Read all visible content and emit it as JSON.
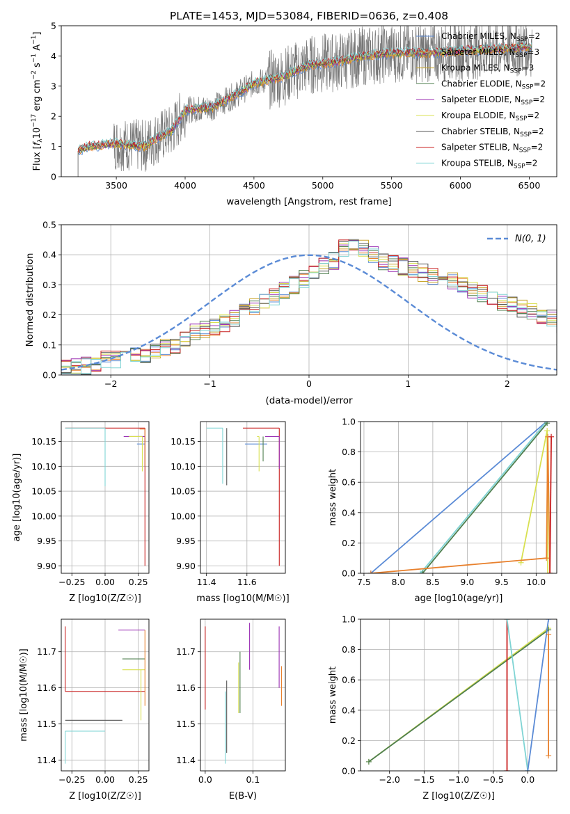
{
  "figure_title": "PLATE=1453, MJD=53084, FIBERID=0636, z=0.408",
  "colors": {
    "chabrier_miles": "#5b8bd6",
    "salpeter_miles": "#e8812e",
    "kroupa_miles": "#c8a42a",
    "chabrier_elodie": "#4f7f4f",
    "salpeter_elodie": "#9b30b4",
    "kroupa_elodie": "#d8e050",
    "chabrier_stelib": "#555555",
    "salpeter_stelib": "#c81e1e",
    "kroupa_stelib": "#7fd4d4",
    "data": "#777777",
    "normal": "#5b8bd6"
  },
  "chart_data": [
    {
      "id": "spectrum",
      "type": "line",
      "title": "PLATE=1453, MJD=53084, FIBERID=0636, z=0.408",
      "xlabel": "wavelength [Angstrom, rest frame]",
      "ylabel": "Flux [f_λ 10^-17 erg cm^-2 s^-1 A^-1]",
      "xlim": [
        3100,
        6700
      ],
      "ylim": [
        0,
        5
      ],
      "xticks": [
        "3500",
        "4000",
        "4500",
        "5000",
        "5500",
        "6000",
        "6500"
      ],
      "yticks": [
        "0",
        "1",
        "2",
        "3",
        "4",
        "5"
      ],
      "legend_position": "right",
      "legend": [
        {
          "key": "chabrier_miles",
          "label": "Chabrier MILES, N",
          "sub": "SSP",
          "suffix": "=2"
        },
        {
          "key": "salpeter_miles",
          "label": "Salpeter MILES, N",
          "sub": "SSP",
          "suffix": "=3"
        },
        {
          "key": "kroupa_miles",
          "label": "Kroupa MILES, N",
          "sub": "SSP",
          "suffix": "=3"
        },
        {
          "key": "chabrier_elodie",
          "label": "Chabrier ELODIE, N",
          "sub": "SSP",
          "suffix": "=2"
        },
        {
          "key": "salpeter_elodie",
          "label": "Salpeter ELODIE, N",
          "sub": "SSP",
          "suffix": "=2"
        },
        {
          "key": "kroupa_elodie",
          "label": "Kroupa ELODIE, N",
          "sub": "SSP",
          "suffix": "=2"
        },
        {
          "key": "chabrier_stelib",
          "label": "Chabrier STELIB, N",
          "sub": "SSP",
          "suffix": "=2"
        },
        {
          "key": "salpeter_stelib",
          "label": "Salpeter STELIB, N",
          "sub": "SSP",
          "suffix": "=2"
        },
        {
          "key": "kroupa_stelib",
          "label": "Kroupa STELIB, N",
          "sub": "SSP",
          "suffix": "=2"
        }
      ],
      "continuum": [
        [
          3220,
          0.85
        ],
        [
          3300,
          1.0
        ],
        [
          3500,
          1.1
        ],
        [
          3700,
          1.0
        ],
        [
          3800,
          1.3
        ],
        [
          3900,
          1.5
        ],
        [
          4000,
          2.2
        ],
        [
          4200,
          2.3
        ],
        [
          4400,
          2.8
        ],
        [
          4500,
          3.1
        ],
        [
          4700,
          3.3
        ],
        [
          4900,
          3.7
        ],
        [
          5100,
          3.8
        ],
        [
          5300,
          4.0
        ],
        [
          5500,
          4.1
        ],
        [
          5800,
          4.1
        ],
        [
          6100,
          4.2
        ],
        [
          6300,
          4.25
        ],
        [
          6500,
          4.3
        ]
      ]
    },
    {
      "id": "residuals",
      "type": "line",
      "xlabel": "(data-model)/error",
      "ylabel": "Normed distribution",
      "xlim": [
        -2.5,
        2.5
      ],
      "ylim": [
        0,
        0.5
      ],
      "xticks": [
        "−2",
        "−1",
        "0",
        "1",
        "2"
      ],
      "yticks": [
        "0.0",
        "0.1",
        "0.2",
        "0.3",
        "0.4",
        "0.5"
      ],
      "legend_position": "top-right",
      "series_label": "N(0, 1)",
      "histogram_bin_width": 0.1,
      "histogram_base": [
        0.02,
        0.025,
        0.03,
        0.04,
        0.05,
        0.05,
        0.06,
        0.065,
        0.07,
        0.08,
        0.09,
        0.1,
        0.12,
        0.14,
        0.15,
        0.16,
        0.17,
        0.19,
        0.21,
        0.23,
        0.25,
        0.26,
        0.28,
        0.3,
        0.32,
        0.34,
        0.36,
        0.38,
        0.4,
        0.41,
        0.42,
        0.4,
        0.38,
        0.37,
        0.36,
        0.35,
        0.34,
        0.33,
        0.32,
        0.31,
        0.3,
        0.28,
        0.27,
        0.26,
        0.24,
        0.23,
        0.22,
        0.21,
        0.2,
        0.19,
        0.17,
        0.16,
        0.15,
        0.14,
        0.13,
        0.12,
        0.11,
        0.1,
        0.095,
        0.09,
        0.08,
        0.075,
        0.07,
        0.065,
        0.06,
        0.055,
        0.05,
        0.048,
        0.045,
        0.042,
        0.04
      ]
    },
    {
      "id": "age_vs_z",
      "type": "scatter",
      "xlabel": "Z [log10(Z/Z☉)]",
      "ylabel": "age [log10(age/yr)]",
      "xlim": [
        -0.33,
        0.33
      ],
      "ylim": [
        9.885,
        10.19
      ],
      "xticks": [
        "−0.25",
        "0.00",
        "0.25"
      ],
      "yticks": [
        "9.90",
        "9.95",
        "10.00",
        "10.05",
        "10.10",
        "10.15"
      ],
      "segments": [
        {
          "key": "salpeter_stelib",
          "x0": -0.3,
          "x1": 0.3,
          "y0": 10.177,
          "y1": 9.9
        },
        {
          "key": "kroupa_stelib",
          "x0": -0.3,
          "x1": 0.0,
          "y0": 10.177,
          "y1": 10.06
        },
        {
          "key": "chabrier_miles",
          "x0": 0.24,
          "x1": 0.3,
          "y0": 10.145,
          "y1": 10.145
        },
        {
          "key": "salpeter_elodie",
          "x0": 0.14,
          "x1": 0.3,
          "y0": 10.16,
          "y1": 10.1
        },
        {
          "key": "kroupa_elodie",
          "x0": 0.18,
          "x1": 0.28,
          "y0": 10.16,
          "y1": 10.09
        },
        {
          "key": "salpeter_miles",
          "x0": 0.26,
          "x1": 0.3,
          "y0": 10.175,
          "y1": 10.1
        }
      ]
    },
    {
      "id": "age_vs_mass",
      "type": "scatter",
      "xlabel": "mass [log10(M/M☉)]",
      "ylabel": "",
      "xlim": [
        11.37,
        11.79
      ],
      "ylim": [
        9.885,
        10.19
      ],
      "xticks": [
        "11.4",
        "11.6"
      ],
      "yticks": [
        "9.90",
        "9.95",
        "10.00",
        "10.05",
        "10.10",
        "10.15"
      ],
      "segments": [
        {
          "key": "kroupa_stelib",
          "x0": 11.4,
          "x1": 11.48,
          "y0": 10.177,
          "y1": 10.065
        },
        {
          "key": "chabrier_stelib",
          "x0": 11.5,
          "x1": 11.5,
          "y0": 10.177,
          "y1": 10.062
        },
        {
          "key": "salpeter_stelib",
          "x0": 11.58,
          "x1": 11.76,
          "y0": 10.177,
          "y1": 9.9
        },
        {
          "key": "chabrier_miles",
          "x0": 11.59,
          "x1": 11.7,
          "y0": 10.145,
          "y1": 10.145
        },
        {
          "key": "kroupa_elodie",
          "x0": 11.65,
          "x1": 11.66,
          "y0": 10.16,
          "y1": 10.09
        },
        {
          "key": "salpeter_elodie",
          "x0": 11.69,
          "x1": 11.76,
          "y0": 10.16,
          "y1": 10.095
        },
        {
          "key": "chabrier_elodie",
          "x0": 11.68,
          "x1": 11.68,
          "y0": 10.16,
          "y1": 10.11
        }
      ]
    },
    {
      "id": "weight_vs_age",
      "type": "line",
      "xlabel": "age [log10(age/yr)]",
      "ylabel": "mass weight",
      "xlim": [
        7.45,
        10.3
      ],
      "ylim": [
        0,
        1
      ],
      "xticks": [
        "7.5",
        "8.0",
        "8.5",
        "9.0",
        "9.5",
        "10.0"
      ],
      "yticks": [
        "0.0",
        "0.2",
        "0.4",
        "0.6",
        "0.8",
        "1.0"
      ],
      "series": [
        {
          "key": "chabrier_miles",
          "points": [
            [
              7.6,
              0.0
            ],
            [
              10.15,
              1.0
            ]
          ]
        },
        {
          "key": "kroupa_stelib",
          "points": [
            [
              8.32,
              0.0
            ],
            [
              10.15,
              1.0
            ]
          ]
        },
        {
          "key": "chabrier_elodie",
          "points": [
            [
              8.35,
              0.0
            ],
            [
              10.16,
              0.99
            ]
          ]
        },
        {
          "key": "kroupa_elodie",
          "points": [
            [
              9.78,
              0.07
            ],
            [
              10.16,
              0.94
            ],
            [
              10.17,
              0.0
            ]
          ]
        },
        {
          "key": "salpeter_miles",
          "points": [
            [
              7.6,
              0.0
            ],
            [
              10.15,
              0.1
            ],
            [
              10.17,
              0.9
            ],
            [
              10.2,
              0.0
            ]
          ]
        },
        {
          "key": "salpeter_stelib",
          "points": [
            [
              10.2,
              0.0
            ],
            [
              10.22,
              0.9
            ]
          ]
        }
      ]
    },
    {
      "id": "mass_vs_z",
      "type": "scatter",
      "xlabel": "Z [log10(Z/Z☉)]",
      "ylabel": "mass [log10(M/M☉)]",
      "xlim": [
        -0.33,
        0.33
      ],
      "ylim": [
        11.37,
        11.79
      ],
      "xticks": [
        "−0.25",
        "0.00",
        "0.25"
      ],
      "yticks": [
        "11.4",
        "11.5",
        "11.6",
        "11.7"
      ],
      "segments": [
        {
          "key": "salpeter_stelib",
          "x0": -0.3,
          "x1": 0.3,
          "y0": 11.59,
          "y1": 11.59
        },
        {
          "key": "salpeter_stelib",
          "x0": -0.3,
          "x1": -0.3,
          "y0": 11.77,
          "y1": 11.59
        },
        {
          "key": "chabrier_stelib",
          "x0": -0.3,
          "x1": 0.13,
          "y0": 11.51,
          "y1": 11.51
        },
        {
          "key": "kroupa_stelib",
          "x0": -0.3,
          "x1": 0.0,
          "y0": 11.48,
          "y1": 11.48
        },
        {
          "key": "kroupa_stelib",
          "x0": -0.3,
          "x1": -0.3,
          "y0": 11.48,
          "y1": 11.39
        },
        {
          "key": "salpeter_elodie",
          "x0": 0.1,
          "x1": 0.3,
          "y0": 11.76,
          "y1": 11.76
        },
        {
          "key": "chabrier_elodie",
          "x0": 0.13,
          "x1": 0.3,
          "y0": 11.68,
          "y1": 11.68
        },
        {
          "key": "kroupa_elodie",
          "x0": 0.13,
          "x1": 0.3,
          "y0": 11.65,
          "y1": 11.65
        },
        {
          "key": "kroupa_elodie",
          "x0": 0.27,
          "x1": 0.27,
          "y0": 11.65,
          "y1": 11.51
        },
        {
          "key": "salpeter_miles",
          "x0": 0.3,
          "x1": 0.3,
          "y0": 11.76,
          "y1": 11.55
        }
      ]
    },
    {
      "id": "mass_vs_ebv",
      "type": "scatter",
      "xlabel": "E(B-V)",
      "ylabel": "",
      "xlim": [
        -0.01,
        0.168
      ],
      "ylim": [
        11.37,
        11.79
      ],
      "xticks": [
        "0.0",
        "0.1"
      ],
      "yticks": [
        "11.4",
        "11.5",
        "11.6",
        "11.7"
      ],
      "segments": [
        {
          "key": "salpeter_stelib",
          "x0": 0.0,
          "x1": 0.0,
          "y0": 11.77,
          "y1": 11.54
        },
        {
          "key": "chabrier_stelib",
          "x0": 0.045,
          "x1": 0.045,
          "y0": 11.62,
          "y1": 11.42
        },
        {
          "key": "kroupa_stelib",
          "x0": 0.042,
          "x1": 0.042,
          "y0": 11.59,
          "y1": 11.39
        },
        {
          "key": "chabrier_elodie",
          "x0": 0.073,
          "x1": 0.073,
          "y0": 11.7,
          "y1": 11.53
        },
        {
          "key": "kroupa_elodie",
          "x0": 0.07,
          "x1": 0.07,
          "y0": 11.67,
          "y1": 11.53
        },
        {
          "key": "salpeter_elodie",
          "x0": 0.093,
          "x1": 0.093,
          "y0": 11.78,
          "y1": 11.65
        },
        {
          "key": "salpeter_elodie",
          "x0": 0.155,
          "x1": 0.155,
          "y0": 11.77,
          "y1": 11.6
        },
        {
          "key": "salpeter_miles",
          "x0": 0.16,
          "x1": 0.16,
          "y0": 11.66,
          "y1": 11.55
        }
      ]
    },
    {
      "id": "weight_vs_z",
      "type": "line",
      "xlabel": "Z [log10(Z/Z☉)]",
      "ylabel": "mass weight",
      "xlim": [
        -2.42,
        0.42
      ],
      "ylim": [
        0,
        1
      ],
      "xticks": [
        "−2.0",
        "−1.5",
        "−1.0",
        "−0.5",
        "0.0"
      ],
      "yticks": [
        "0.0",
        "0.2",
        "0.4",
        "0.6",
        "0.8",
        "1.0"
      ],
      "series": [
        {
          "key": "kroupa_elodie",
          "points": [
            [
              -2.3,
              0.06
            ],
            [
              0.3,
              0.94
            ]
          ]
        },
        {
          "key": "chabrier_elodie",
          "points": [
            [
              -2.3,
              0.06
            ],
            [
              0.3,
              0.93
            ]
          ]
        },
        {
          "key": "salpeter_stelib",
          "points": [
            [
              -0.3,
              0.0
            ],
            [
              -0.3,
              1.0
            ]
          ]
        },
        {
          "key": "kroupa_stelib",
          "points": [
            [
              -0.3,
              1.0
            ],
            [
              0.0,
              0.0
            ]
          ]
        },
        {
          "key": "chabrier_miles",
          "points": [
            [
              0.0,
              0.0
            ],
            [
              0.3,
              1.0
            ]
          ]
        },
        {
          "key": "salpeter_miles",
          "points": [
            [
              0.3,
              0.1
            ],
            [
              0.3,
              0.9
            ]
          ]
        }
      ]
    }
  ]
}
